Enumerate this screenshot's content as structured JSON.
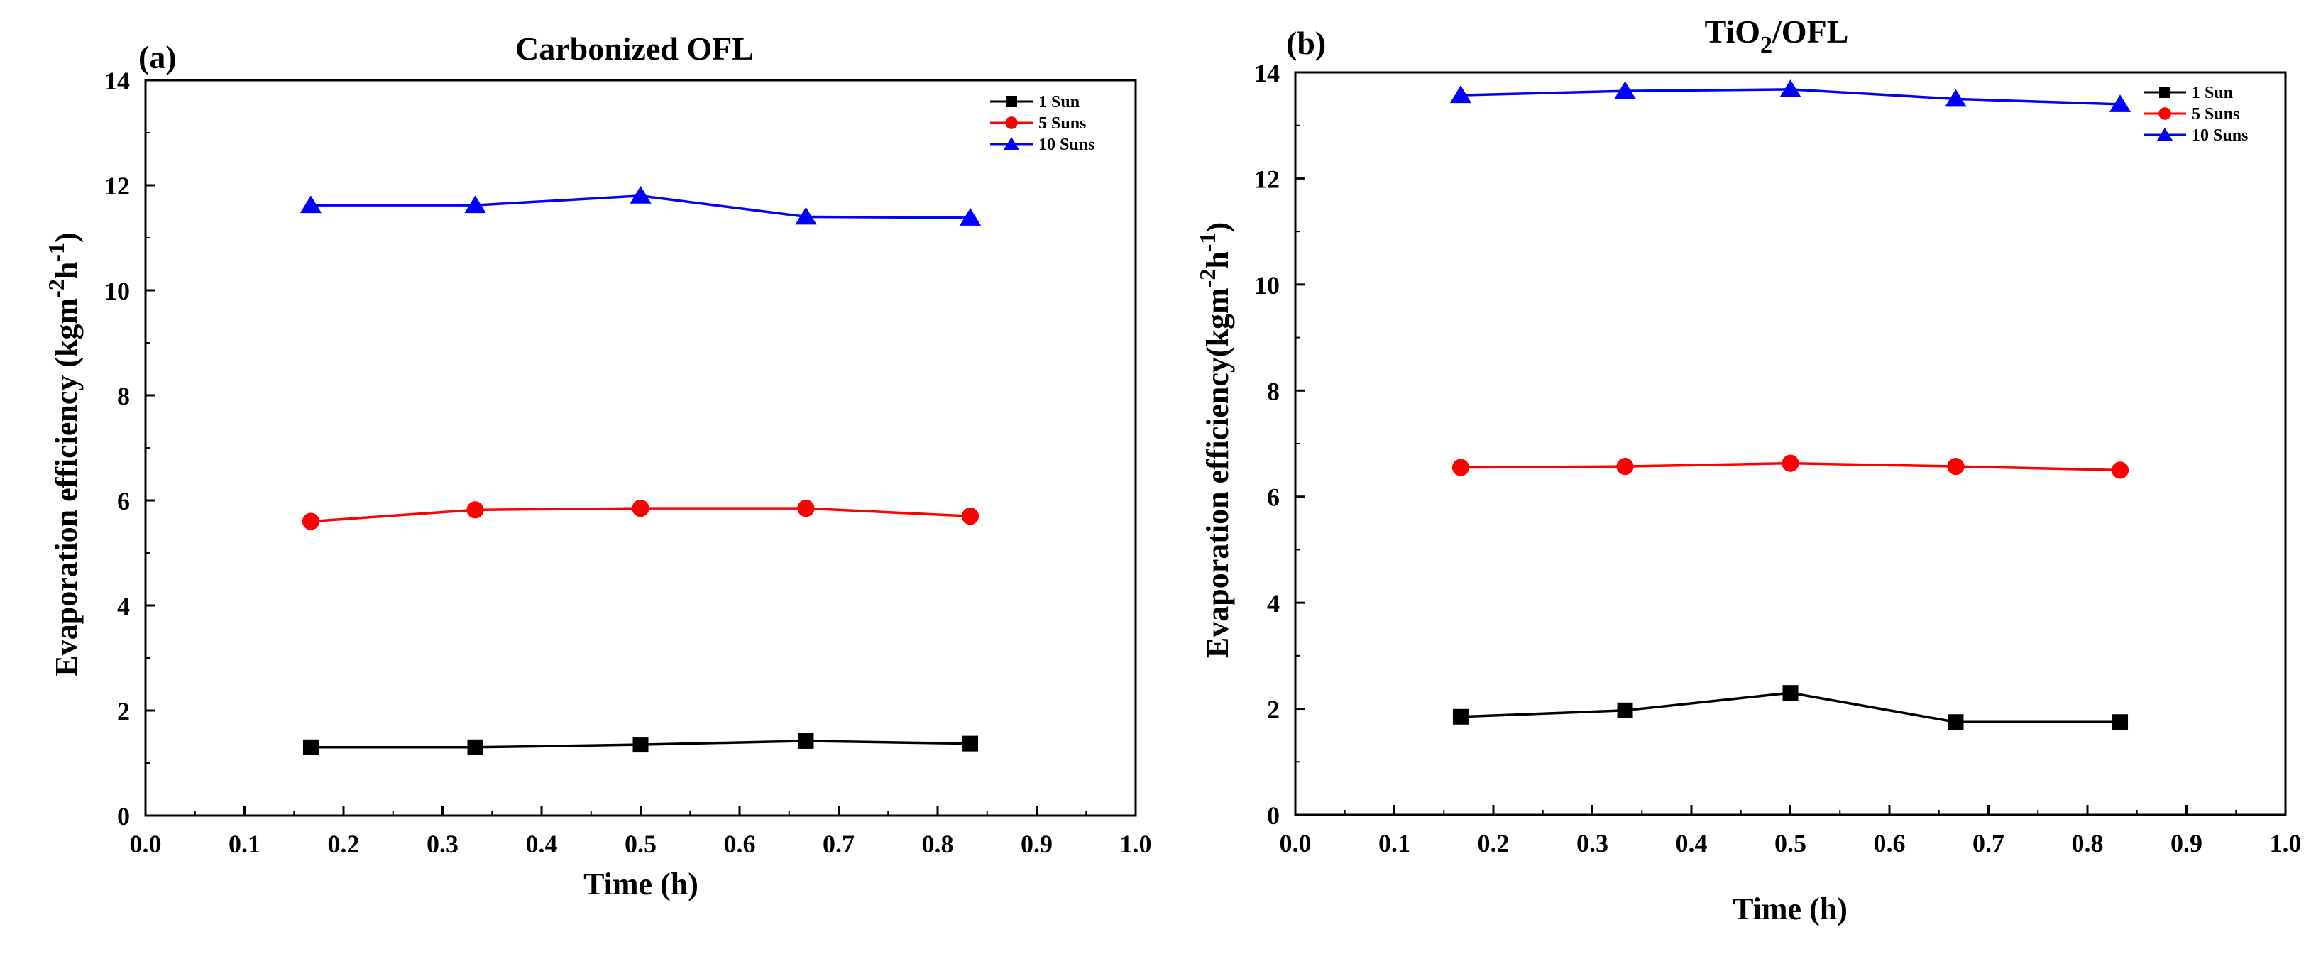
{
  "colors": {
    "black": "#000000",
    "red": "#ff0000",
    "blue": "#0000ff"
  },
  "chart_data": [
    {
      "type": "line",
      "panel_label": "(a)",
      "title": "Carbonized OFL",
      "xlabel": "Time (h)",
      "ylabel": "Evaporation efficiency (kgm",
      "ylabel_sup1": "-2",
      "ylabel_mid": "h",
      "ylabel_sup2": "-1",
      "ylabel_end": ")",
      "xlim": [
        0.0,
        1.0
      ],
      "ylim": [
        0,
        14
      ],
      "xticks": [
        "0.0",
        "0.1",
        "0.2",
        "0.3",
        "0.4",
        "0.5",
        "0.6",
        "0.7",
        "0.8",
        "0.9",
        "1.0"
      ],
      "yticks": [
        "0",
        "2",
        "4",
        "6",
        "8",
        "10",
        "12",
        "14"
      ],
      "legend_position": "top-right",
      "x": [
        0.167,
        0.333,
        0.5,
        0.667,
        0.833
      ],
      "series": [
        {
          "name": "1  Sun",
          "color": "#000000",
          "marker": "square",
          "values": [
            1.3,
            1.3,
            1.35,
            1.42,
            1.37
          ]
        },
        {
          "name": "5  Suns",
          "color": "#ff0000",
          "marker": "circle",
          "values": [
            5.6,
            5.82,
            5.85,
            5.85,
            5.7
          ]
        },
        {
          "name": "10 Suns",
          "color": "#0000ff",
          "marker": "triangle",
          "values": [
            11.62,
            11.62,
            11.8,
            11.4,
            11.38
          ]
        }
      ]
    },
    {
      "type": "line",
      "panel_label": "(b)",
      "title": "TiO",
      "title_sub": "2",
      "title_end": "/OFL",
      "xlabel": "Time (h)",
      "ylabel": "Evaporation efficiency(kgm",
      "ylabel_sup1": "-2",
      "ylabel_mid": "h",
      "ylabel_sup2": "-1",
      "ylabel_end": ")",
      "xlim": [
        0.0,
        1.0
      ],
      "ylim": [
        0,
        14
      ],
      "xticks": [
        "0.0",
        "0.1",
        "0.2",
        "0.3",
        "0.4",
        "0.5",
        "0.6",
        "0.7",
        "0.8",
        "0.9",
        "1.0"
      ],
      "yticks": [
        "0",
        "2",
        "4",
        "6",
        "8",
        "10",
        "12",
        "14"
      ],
      "legend_position": "top-right",
      "x": [
        0.167,
        0.333,
        0.5,
        0.667,
        0.833
      ],
      "series": [
        {
          "name": "1 Sun",
          "color": "#000000",
          "marker": "square",
          "values": [
            1.85,
            1.97,
            2.3,
            1.75,
            1.75
          ]
        },
        {
          "name": "5 Suns",
          "color": "#ff0000",
          "marker": "circle",
          "values": [
            6.55,
            6.57,
            6.63,
            6.57,
            6.5
          ]
        },
        {
          "name": "10 Suns",
          "color": "#0000ff",
          "marker": "triangle",
          "values": [
            13.57,
            13.65,
            13.68,
            13.5,
            13.4
          ]
        }
      ]
    }
  ]
}
